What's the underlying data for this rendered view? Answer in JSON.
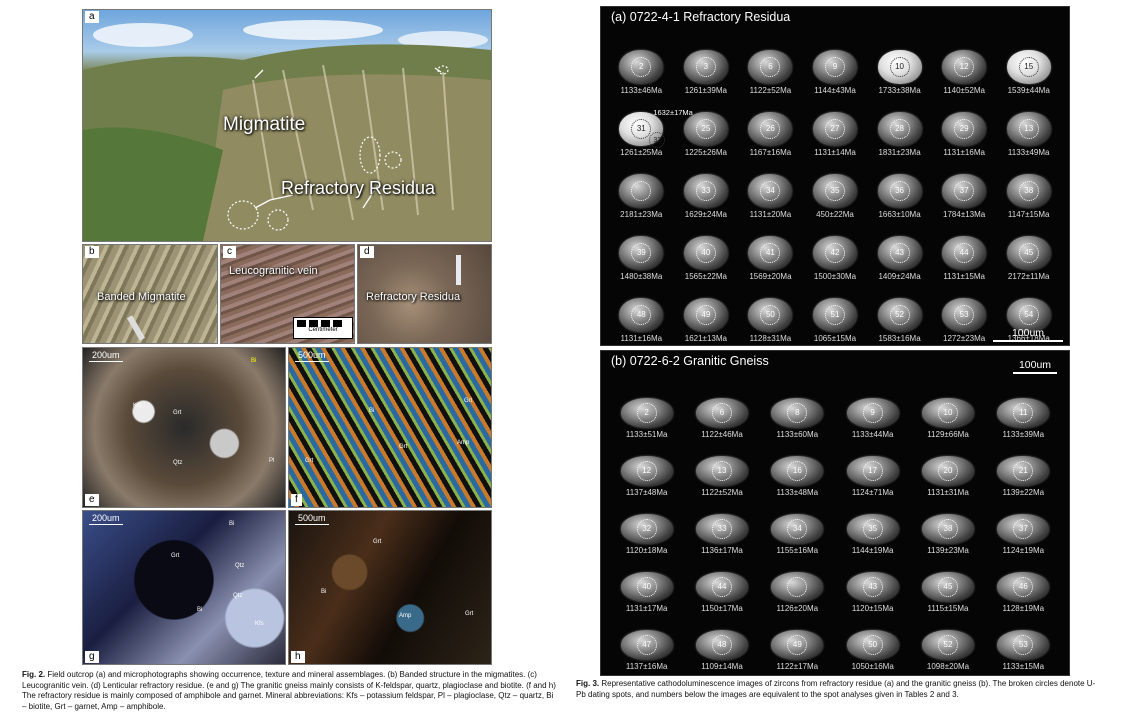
{
  "fig2": {
    "panels": {
      "a": {
        "label": "a",
        "text1": "Migmatite",
        "text2": "Refractory Residua"
      },
      "b": {
        "label": "b",
        "text": "Banded Migmatite"
      },
      "c": {
        "label": "c",
        "text": "Leucogranitic vein",
        "ruler": "Centimeter"
      },
      "d": {
        "label": "d",
        "text": "Refractory Residua"
      },
      "e": {
        "label": "e",
        "scale": "200um",
        "minerals": [
          "Kfs",
          "Grt",
          "Bi",
          "Pl",
          "Qtz"
        ]
      },
      "f": {
        "label": "f",
        "scale": "500um",
        "minerals": [
          "Grt",
          "Grt",
          "Grt",
          "Amp",
          "Bi"
        ]
      },
      "g": {
        "label": "g",
        "scale": "200um",
        "minerals": [
          "Grt",
          "Bi",
          "Qtz",
          "Qtz",
          "Kfs",
          "Bi"
        ]
      },
      "h": {
        "label": "h",
        "scale": "500um",
        "minerals": [
          "Grt",
          "Bi",
          "Amp",
          "Grt"
        ]
      }
    },
    "caption_label": "Fig. 2.",
    "caption_text": "Field outcrop (a) and microphotographs showing occurrence, texture and mineral assemblages. (b) Banded structure in the migmatites. (c) Leucogranitic vein. (d) Lenticular refractory residue. (e and g) The granitic gneiss mainly consists of K-feldspar, quartz, plagioclase and biotite. (f and h) The refractory residue is mainly composed of amphibole and garnet. Mineral abbreviations: Kfs – potassium feldspar, Pl – plagioclase, Qtz – quartz, Bi – biotite, Grt – garnet, Amp – amphibole."
  },
  "fig3": {
    "panel_a": {
      "title": "(a) 0722-4-1   Refractory Residua",
      "scale": "100um",
      "grains": [
        {
          "n": "2",
          "age": "1133±46Ma"
        },
        {
          "n": "3",
          "age": "1261±39Ma"
        },
        {
          "n": "6",
          "age": "1122±52Ma"
        },
        {
          "n": "9",
          "age": "1144±43Ma"
        },
        {
          "n": "10",
          "age": "1733±38Ma",
          "bright": true
        },
        {
          "n": "12",
          "age": "1140±52Ma"
        },
        {
          "n": "15",
          "age": "1539±44Ma",
          "bright": true
        },
        {
          "n": "31",
          "age": "1261±25Ma",
          "extra": "32",
          "extra_age": "1632±17Ma",
          "bright": true
        },
        {
          "n": "25",
          "age": "1225±26Ma"
        },
        {
          "n": "26",
          "age": "1167±16Ma"
        },
        {
          "n": "27",
          "age": "1131±14Ma"
        },
        {
          "n": "28",
          "age": "1831±23Ma"
        },
        {
          "n": "29",
          "age": "1131±16Ma"
        },
        {
          "n": "13",
          "age": "1133±49Ma"
        },
        {
          "n": "",
          "age": "2181±23Ma"
        },
        {
          "n": "33",
          "age": "1629±24Ma"
        },
        {
          "n": "34",
          "age": "1131±20Ma"
        },
        {
          "n": "35",
          "age": "450±22Ma"
        },
        {
          "n": "36",
          "age": "1663±10Ma"
        },
        {
          "n": "37",
          "age": "1784±13Ma"
        },
        {
          "n": "38",
          "age": "1147±15Ma"
        },
        {
          "n": "39",
          "age": "1480±38Ma"
        },
        {
          "n": "40",
          "age": "1565±22Ma"
        },
        {
          "n": "41",
          "age": "1569±20Ma"
        },
        {
          "n": "42",
          "age": "1500±30Ma"
        },
        {
          "n": "43",
          "age": "1409±24Ma"
        },
        {
          "n": "44",
          "age": "1131±15Ma"
        },
        {
          "n": "45",
          "age": "2172±11Ma"
        },
        {
          "n": "48",
          "age": "1131±16Ma"
        },
        {
          "n": "49",
          "age": "1621±13Ma"
        },
        {
          "n": "50",
          "age": "1128±31Ma"
        },
        {
          "n": "51",
          "age": "1065±15Ma"
        },
        {
          "n": "52",
          "age": "1583±16Ma"
        },
        {
          "n": "53",
          "age": "1272±23Ma"
        },
        {
          "n": "54",
          "age": "1366±18Ma"
        }
      ]
    },
    "panel_b": {
      "title": "(b) 0722-6-2   Granitic Gneiss",
      "scale": "100um",
      "grains": [
        {
          "n": "2",
          "age": "1133±51Ma"
        },
        {
          "n": "6",
          "age": "1122±46Ma"
        },
        {
          "n": "8",
          "age": "1133±60Ma"
        },
        {
          "n": "9",
          "age": "1133±44Ma"
        },
        {
          "n": "10",
          "age": "1129±66Ma"
        },
        {
          "n": "11",
          "age": "1133±39Ma"
        },
        {
          "n": "12",
          "age": "1137±48Ma"
        },
        {
          "n": "13",
          "age": "1122±52Ma"
        },
        {
          "n": "16",
          "age": "1133±48Ma"
        },
        {
          "n": "17",
          "age": "1124±71Ma"
        },
        {
          "n": "20",
          "age": "1131±31Ma"
        },
        {
          "n": "21",
          "age": "1139±22Ma"
        },
        {
          "n": "32",
          "age": "1120±18Ma"
        },
        {
          "n": "33",
          "age": "1136±17Ma"
        },
        {
          "n": "34",
          "age": "1155±16Ma"
        },
        {
          "n": "35",
          "age": "1144±19Ma"
        },
        {
          "n": "38",
          "age": "1139±23Ma"
        },
        {
          "n": "37",
          "age": "1124±19Ma"
        },
        {
          "n": "40",
          "age": "1131±17Ma"
        },
        {
          "n": "44",
          "age": "1150±17Ma"
        },
        {
          "n": "",
          "age": "1126±20Ma"
        },
        {
          "n": "43",
          "age": "1120±15Ma"
        },
        {
          "n": "45",
          "age": "1115±15Ma"
        },
        {
          "n": "46",
          "age": "1128±19Ma"
        },
        {
          "n": "47",
          "age": "1137±16Ma"
        },
        {
          "n": "48",
          "age": "1109±14Ma"
        },
        {
          "n": "49",
          "age": "1122±17Ma"
        },
        {
          "n": "50",
          "age": "1050±16Ma"
        },
        {
          "n": "52",
          "age": "1098±20Ma"
        },
        {
          "n": "53",
          "age": "1133±15Ma"
        }
      ]
    },
    "caption_label": "Fig. 3.",
    "caption_text": "Representative cathodoluminescence images of zircons from refractory residue (a) and the granitic gneiss (b). The broken circles denote U-Pb dating spots, and numbers below the images are equivalent to the spot analyses given in Tables 2 and 3."
  }
}
